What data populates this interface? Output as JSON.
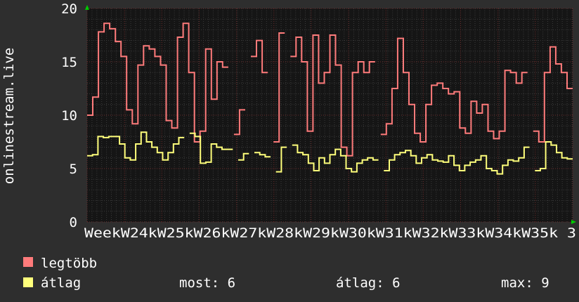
{
  "chart_data": {
    "type": "line",
    "ylabel": "onlinestream.live",
    "ylim": [
      0,
      20
    ],
    "yticks": [
      "0",
      "5",
      "10",
      "15",
      "20"
    ],
    "xticks": [
      "Week",
      "W24",
      "W25",
      "W26",
      "W27",
      "W28",
      "W29",
      "W30",
      "W31",
      "W32",
      "W33",
      "W34",
      "W35",
      "3"
    ],
    "x_tick_text": "WeekW24kW25kW26kW27kW28kW29kW30kW31kW32kW33kW34kW35k 3",
    "grid": true,
    "legend_placement": "bottom-left",
    "series": [
      {
        "name": "legtöbb",
        "color": "#ff7b7b",
        "values": [
          10,
          10,
          11.7,
          11.7,
          17.8,
          17.8,
          18.6,
          18.6,
          18.1,
          18.1,
          16.9,
          16.9,
          15.5,
          15.5,
          10.5,
          10.5,
          9.2,
          9.2,
          14.7,
          14.7,
          16.5,
          16.5,
          16.2,
          16.2,
          15.5,
          15.5,
          14.7,
          14.7,
          9.5,
          9.5,
          8.8,
          8.8,
          17.3,
          17.3,
          18.6,
          18.6,
          14,
          14,
          7.5,
          7.5,
          8.5,
          8.5,
          16.2,
          16.2,
          11.5,
          11.5,
          15,
          15,
          14.5,
          14.5,
          null,
          null,
          8.2,
          8.2,
          10.5,
          10.5,
          null,
          null,
          15.5,
          15.5,
          17,
          17,
          14,
          14,
          null,
          null,
          7.5,
          7.5,
          17.7,
          17.7,
          null,
          null,
          15.5,
          15.5,
          17.3,
          17.3,
          15,
          15,
          8.5,
          8.5,
          17.5,
          17.5,
          13,
          13,
          14,
          14,
          17.5,
          17.5,
          14.7,
          14.7,
          7,
          7,
          6.2,
          6.2,
          14,
          14,
          15,
          15,
          14,
          14,
          15,
          15,
          null,
          null,
          8.2,
          8.2,
          9.2,
          9.2,
          12.5,
          12.5,
          17.2,
          17.2,
          14,
          14,
          11,
          11,
          8.3,
          8.3,
          7.5,
          7.5,
          11,
          11,
          12.8,
          12.8,
          13,
          13,
          12.5,
          12.5,
          12,
          12,
          12.2,
          12.2,
          8.8,
          8.8,
          8.3,
          8.3,
          11.3,
          11.3,
          10.2,
          10.2,
          11,
          11,
          8.5,
          8.5,
          7.8,
          7.8,
          8.5,
          8.5,
          14.2,
          14.2,
          14,
          14,
          13,
          13,
          14,
          14,
          null,
          null,
          8.5,
          8.5,
          7.5,
          7.5,
          14,
          14,
          16.4,
          16.4,
          14.8,
          14.8,
          14,
          14,
          12.5,
          12.5
        ]
      },
      {
        "name": "átlag",
        "color": "#ffff7b",
        "values": [
          6.2,
          6.2,
          6.3,
          6.3,
          8,
          8,
          7.9,
          7.9,
          8,
          8,
          8,
          8,
          7.3,
          7.3,
          6,
          6,
          5.8,
          5.8,
          7.3,
          7.3,
          8.4,
          8.4,
          7.5,
          7.5,
          7,
          7,
          6.5,
          6.5,
          5.8,
          5.8,
          6.5,
          6.5,
          7.3,
          7.3,
          7.9,
          7.9,
          null,
          null,
          8.3,
          8.3,
          8,
          8,
          5.5,
          5.5,
          5.6,
          5.6,
          7.3,
          7.3,
          7,
          7,
          6.8,
          6.8,
          6.8,
          6.8,
          null,
          null,
          5.8,
          5.8,
          6.4,
          6.4,
          null,
          null,
          6.5,
          6.5,
          6.3,
          6.3,
          6.1,
          6.1,
          null,
          null,
          4.7,
          4.7,
          7,
          7,
          null,
          null,
          7.2,
          7.2,
          6.5,
          6.5,
          6.3,
          6.3,
          5.5,
          5.5,
          4.8,
          4.8,
          6,
          6,
          5.5,
          5.5,
          6.3,
          6.3,
          6.8,
          6.8,
          6.2,
          6.2,
          5,
          5,
          4.7,
          4.7,
          5.5,
          5.5,
          5.8,
          5.8,
          6,
          6,
          5.8,
          5.8,
          null,
          null,
          4.8,
          4.8,
          5.8,
          5.8,
          6.3,
          6.3,
          6.5,
          6.5,
          6.7,
          6.7,
          6.2,
          6.2,
          5.5,
          5.5,
          6,
          6,
          6.3,
          6.3,
          5.8,
          5.8,
          5.7,
          5.7,
          5.6,
          5.6,
          6.2,
          6.2,
          5.3,
          5.3,
          4.8,
          4.8,
          5.3,
          5.3,
          5.6,
          5.6,
          5.8,
          5.8,
          6.2,
          6.2,
          5,
          5,
          4.8,
          4.8,
          4.5,
          4.5,
          5.3,
          5.3,
          5.8,
          5.8,
          5.7,
          5.7,
          6,
          6,
          7,
          7,
          null,
          null,
          4.8,
          4.8,
          5,
          5,
          7.5,
          7.5,
          7.2,
          7.2,
          6.5,
          6.5,
          6,
          6,
          5.9,
          5.9
        ]
      }
    ]
  },
  "legend": {
    "max_label": "legtöbb",
    "avg_label": "átlag",
    "now_text": "most: 6",
    "avg_text": "átlag: 6",
    "max_text": "max: 9"
  },
  "colors": {
    "background": "#2e2e2e",
    "plot_background": "#151515",
    "grid_minor": "#3a3a3a",
    "grid_major": "#6a2a2a",
    "axis_arrow": "#00cc00"
  }
}
